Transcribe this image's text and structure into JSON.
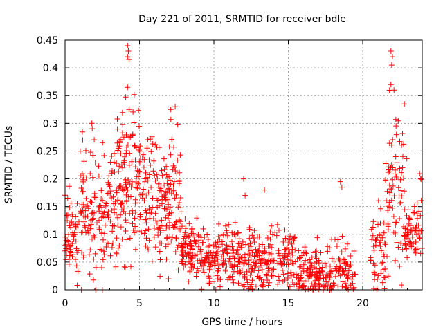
{
  "chart_data": {
    "type": "scatter",
    "title": "Day 221 of 2011, SRMTID for receiver bdle",
    "xlabel": "GPS time / hours",
    "ylabel": "SRMTID / TECUs",
    "xlim": [
      0,
      24
    ],
    "ylim": [
      0,
      0.45
    ],
    "xticks": [
      0,
      5,
      10,
      15,
      20
    ],
    "yticks": [
      0,
      0.05,
      0.1,
      0.15,
      0.2,
      0.25,
      0.3,
      0.35,
      0.4,
      0.45
    ],
    "xtick_labels": [
      "0",
      "5",
      "10",
      "15",
      "20"
    ],
    "ytick_labels": [
      "0",
      "0.05",
      "0.1",
      "0.15",
      "0.2",
      "0.25",
      "0.3",
      "0.35",
      "0.4",
      "0.45"
    ],
    "grid": true,
    "marker": "+",
    "color": "#ff0000",
    "segments": [
      {
        "x_start": 0.0,
        "x_end": 1.0,
        "mean": 0.09,
        "spread": 0.035,
        "count": 60
      },
      {
        "x_start": 1.0,
        "x_end": 2.0,
        "mean": 0.15,
        "spread": 0.07,
        "count": 70
      },
      {
        "x_start": 2.0,
        "x_end": 3.5,
        "mean": 0.15,
        "spread": 0.055,
        "count": 90
      },
      {
        "x_start": 3.5,
        "x_end": 5.0,
        "mean": 0.19,
        "spread": 0.065,
        "count": 120
      },
      {
        "x_start": 5.0,
        "x_end": 6.5,
        "mean": 0.17,
        "spread": 0.06,
        "count": 100
      },
      {
        "x_start": 6.5,
        "x_end": 7.8,
        "mean": 0.16,
        "spread": 0.06,
        "count": 100
      },
      {
        "x_start": 7.8,
        "x_end": 9.0,
        "mean": 0.07,
        "spread": 0.025,
        "count": 90
      },
      {
        "x_start": 9.0,
        "x_end": 12.0,
        "mean": 0.06,
        "spread": 0.028,
        "count": 180
      },
      {
        "x_start": 12.0,
        "x_end": 15.5,
        "mean": 0.05,
        "spread": 0.03,
        "count": 200
      },
      {
        "x_start": 15.5,
        "x_end": 19.5,
        "mean": 0.03,
        "spread": 0.025,
        "count": 220
      },
      {
        "x_start": 20.5,
        "x_end": 21.5,
        "mean": 0.06,
        "spread": 0.04,
        "count": 50
      },
      {
        "x_start": 21.5,
        "x_end": 22.8,
        "mean": 0.18,
        "spread": 0.07,
        "count": 80
      },
      {
        "x_start": 22.8,
        "x_end": 24.0,
        "mean": 0.11,
        "spread": 0.035,
        "count": 70
      }
    ],
    "highlights": [
      {
        "x": 4.2,
        "y": 0.44
      },
      {
        "x": 4.25,
        "y": 0.43
      },
      {
        "x": 4.2,
        "y": 0.42
      },
      {
        "x": 4.3,
        "y": 0.415
      },
      {
        "x": 4.2,
        "y": 0.365
      },
      {
        "x": 4.3,
        "y": 0.325
      },
      {
        "x": 7.4,
        "y": 0.33
      },
      {
        "x": 7.1,
        "y": 0.325
      },
      {
        "x": 1.8,
        "y": 0.3
      },
      {
        "x": 21.9,
        "y": 0.43
      },
      {
        "x": 22.0,
        "y": 0.42
      },
      {
        "x": 21.95,
        "y": 0.405
      },
      {
        "x": 21.9,
        "y": 0.37
      },
      {
        "x": 22.1,
        "y": 0.36
      },
      {
        "x": 22.8,
        "y": 0.335
      },
      {
        "x": 12.0,
        "y": 0.2
      },
      {
        "x": 12.1,
        "y": 0.17
      },
      {
        "x": 13.4,
        "y": 0.18
      },
      {
        "x": 18.5,
        "y": 0.195
      },
      {
        "x": 18.6,
        "y": 0.185
      },
      {
        "x": 23.9,
        "y": 0.2
      },
      {
        "x": 1.1,
        "y": 0.0
      },
      {
        "x": 2.5,
        "y": 0.0
      }
    ]
  }
}
